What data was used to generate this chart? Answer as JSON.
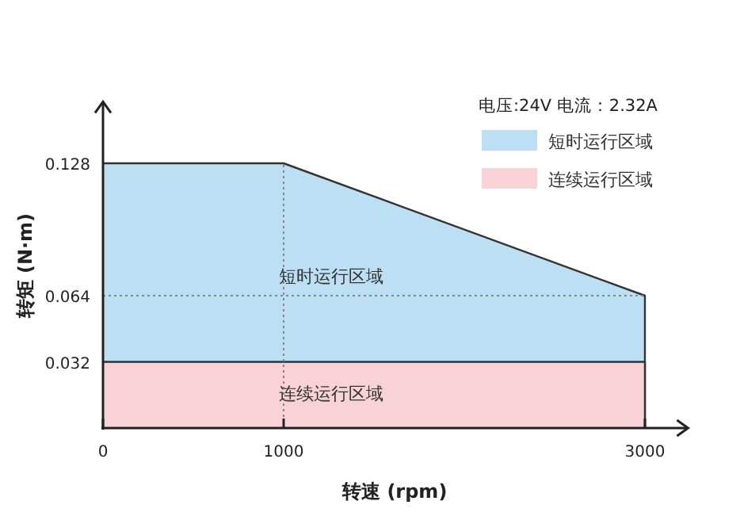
{
  "chart_data": {
    "type": "area",
    "subtitle": "电压:24V   电流：2.32A",
    "xlabel": "转速 (rpm)",
    "ylabel": "转矩 (N·m)",
    "series": [
      {
        "name": "短时运行区域",
        "color": "#bddff4",
        "x": [
          0,
          1000,
          3000
        ],
        "values": [
          0.128,
          0.128,
          0.064
        ]
      },
      {
        "name": "连续运行区域",
        "color": "#f9d2d8",
        "x": [
          0,
          1000,
          3000
        ],
        "values": [
          0.032,
          0.032,
          0.032
        ]
      }
    ],
    "xlim": [
      0,
      3230
    ],
    "ylim": [
      0,
      0.157
    ],
    "xticks": [
      0,
      1000,
      3000
    ],
    "yticks": [
      0.032,
      0.064,
      0.128
    ],
    "ref_lines": [
      {
        "axis": "x",
        "value": 1000,
        "color": "#888888",
        "line_style": "dotted"
      },
      {
        "axis": "y",
        "value": 0.064,
        "color": "#888888",
        "line_style": "dotted"
      }
    ],
    "annotations": [
      "短时运行区域",
      "连续运行区域"
    ],
    "legend": "top right",
    "grid": false
  }
}
